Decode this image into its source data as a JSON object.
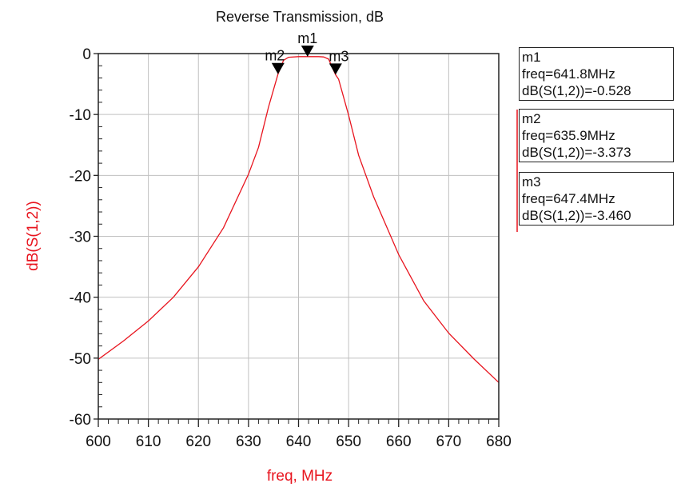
{
  "chart_data": {
    "type": "line",
    "title": "Reverse Transmission, dB",
    "xlabel": "freq, MHz",
    "ylabel": "dB(S(1,2))",
    "xlim": [
      600,
      680
    ],
    "ylim": [
      -60,
      0
    ],
    "xticks": [
      600,
      610,
      620,
      630,
      640,
      650,
      660,
      670,
      680
    ],
    "yticks": [
      0,
      -10,
      -20,
      -30,
      -40,
      -50,
      -60
    ],
    "grid": true,
    "colors": {
      "series": "#e8141e",
      "axis": "#222222",
      "grid": "#c0c0c0",
      "label": "#e8141e"
    },
    "series": [
      {
        "x": [
          600,
          605,
          610,
          615,
          620,
          625,
          630,
          632,
          634,
          635.9,
          637,
          638,
          640,
          642,
          644,
          645,
          646,
          647.4,
          648,
          650,
          652,
          655,
          660,
          665,
          670,
          675,
          680
        ],
        "y": [
          -50.2,
          -47.2,
          -43.9,
          -40.0,
          -35.0,
          -28.6,
          -19.8,
          -15.4,
          -8.8,
          -3.373,
          -1.1,
          -0.6,
          -0.5,
          -0.5,
          -0.5,
          -0.55,
          -0.9,
          -3.46,
          -4.2,
          -10.1,
          -16.7,
          -23.5,
          -33.0,
          -40.6,
          -45.9,
          -50.1,
          -54.0
        ]
      }
    ],
    "markers": [
      {
        "name": "m1",
        "freq": 641.8,
        "value": -0.528,
        "line1": "freq=641.8MHz",
        "line2": "dB(S(1,2))=-0.528"
      },
      {
        "name": "m2",
        "freq": 635.9,
        "value": -3.373,
        "line1": "freq=635.9MHz",
        "line2": "dB(S(1,2))=-3.373"
      },
      {
        "name": "m3",
        "freq": 647.4,
        "value": -3.46,
        "line1": "freq=647.4MHz",
        "line2": "dB(S(1,2))=-3.460"
      }
    ]
  }
}
